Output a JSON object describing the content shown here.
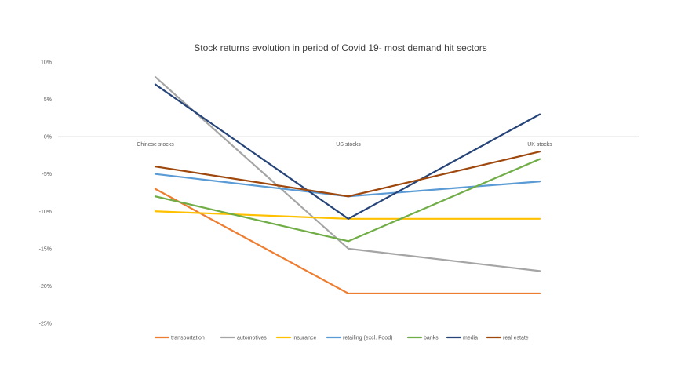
{
  "chart_data": {
    "type": "line",
    "title": "Stock returns evolution in period of Covid 19- most demand hit sectors",
    "categories": [
      "Chinese stocks",
      "US stocks",
      "UK stocks"
    ],
    "y_tick_labels": [
      "10%",
      "5%",
      "0%",
      "-5%",
      "-10%",
      "-15%",
      "-20%",
      "-25%"
    ],
    "y_ticks": [
      10,
      5,
      0,
      -5,
      -10,
      -15,
      -20,
      -25
    ],
    "ylim": [
      -25,
      10
    ],
    "y_unit": "%",
    "grid": false,
    "legend_position": "bottom",
    "series": [
      {
        "name": "transportation",
        "color": "#ED7D31",
        "values": [
          -7,
          -21,
          -21
        ]
      },
      {
        "name": "automotives",
        "color": "#A5A5A5",
        "values": [
          8,
          -15,
          -18
        ]
      },
      {
        "name": "insurance",
        "color": "#FFC000",
        "values": [
          -10,
          -11,
          -11
        ]
      },
      {
        "name": "retailing (excl. Food)",
        "color": "#5B9BD5",
        "values": [
          -5,
          -8,
          -6
        ]
      },
      {
        "name": "banks",
        "color": "#70AD47",
        "values": [
          -8,
          -14,
          -3
        ]
      },
      {
        "name": "media",
        "color": "#264478",
        "values": [
          7,
          -11,
          3
        ]
      },
      {
        "name": "real estate",
        "color": "#9E480E",
        "values": [
          -4,
          -8,
          -2
        ]
      }
    ]
  }
}
